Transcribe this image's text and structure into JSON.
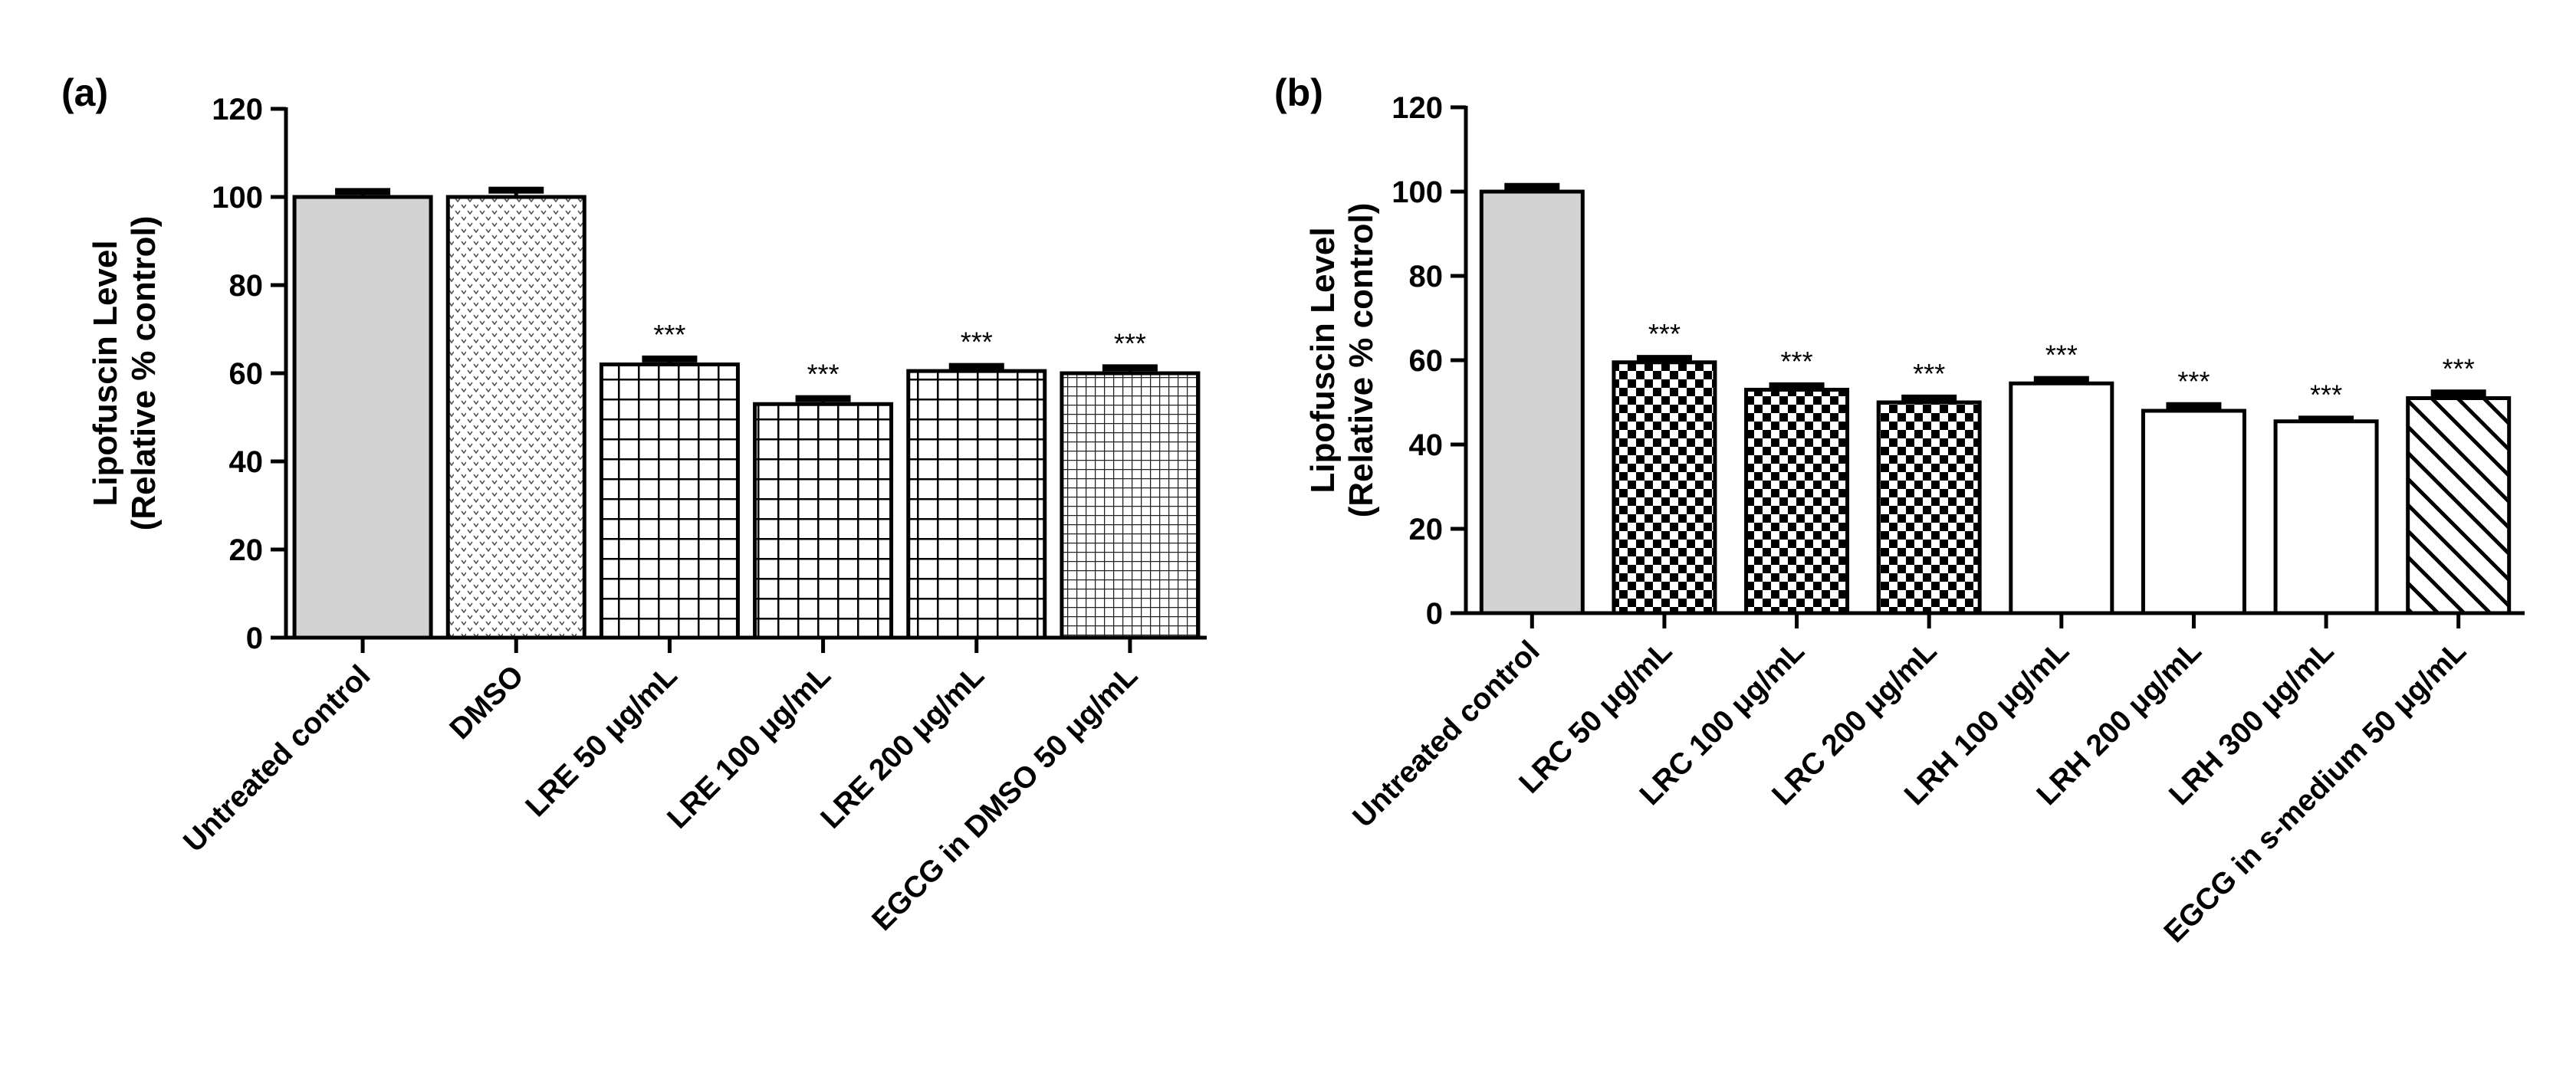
{
  "chart_data": [
    {
      "type": "bar",
      "panel_label": "(a)",
      "title": "",
      "ylabel_line1": "Lipofuscin Level",
      "ylabel_line2": "(Relative % control)",
      "ylim": [
        0,
        120
      ],
      "ticks": [
        0,
        20,
        40,
        60,
        80,
        100,
        120
      ],
      "tick_labels": [
        "0",
        "20",
        "40",
        "60",
        "80",
        "100",
        "120"
      ],
      "categories": [
        "Untreated control",
        "DMSO",
        "LRE 50 μg/mL",
        "LRE 100 μg/mL",
        "LRE 200 μg/mL",
        "EGCG in DMSO 50 μg/mL"
      ],
      "values": [
        100,
        100,
        62,
        53,
        60.5,
        60
      ],
      "errors": [
        1.5,
        1.8,
        1.5,
        1.5,
        1.3,
        1.5
      ],
      "significance": [
        "",
        "",
        "***",
        "***",
        "***",
        "***"
      ],
      "patterns": [
        "gray",
        "dots",
        "grid",
        "grid",
        "grid",
        "finegrid"
      ]
    },
    {
      "type": "bar",
      "panel_label": "(b)",
      "title": "",
      "ylabel_line1": "Lipofuscin Level",
      "ylabel_line2": "(Relative % control)",
      "ylim": [
        0,
        120
      ],
      "ticks": [
        0,
        20,
        40,
        60,
        80,
        100,
        120
      ],
      "tick_labels": [
        "0",
        "20",
        "40",
        "60",
        "80",
        "100",
        "120"
      ],
      "categories": [
        "Untreated control",
        "LRC 50 μg/mL",
        "LRC 100 μg/mL",
        "LRC 200 μg/mL",
        "LRH 100 μg/mL",
        "LRH 200 μg/mL",
        "LRH 300 μg/mL",
        "EGCG in s-medium 50 μg/mL"
      ],
      "values": [
        100,
        59.5,
        53,
        50,
        54.5,
        48,
        45.5,
        51
      ],
      "errors": [
        1.5,
        1.2,
        1.2,
        1.3,
        1.2,
        1.5,
        0.8,
        1.5
      ],
      "significance": [
        "",
        "***",
        "***",
        "***",
        "***",
        "***",
        "***",
        "***"
      ],
      "patterns": [
        "gray",
        "checker",
        "checker",
        "checker",
        "white",
        "white",
        "white",
        "diag"
      ]
    }
  ]
}
